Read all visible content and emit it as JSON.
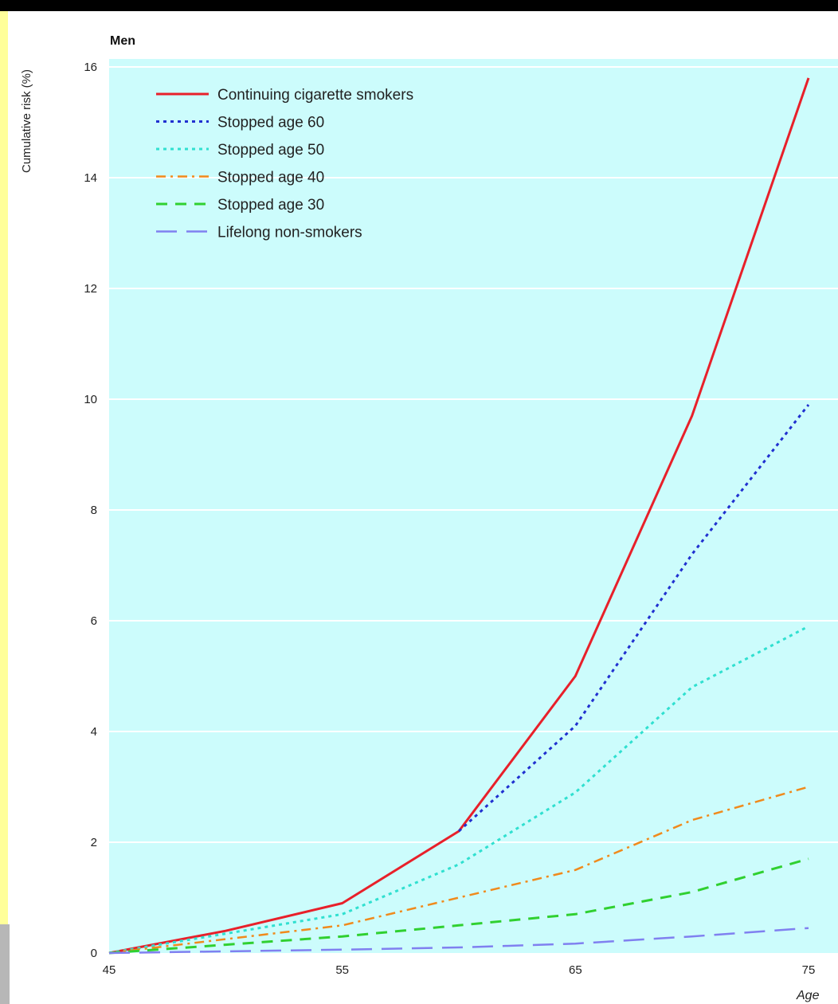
{
  "chart_data": {
    "type": "line",
    "title": "Men",
    "xlabel": "Age",
    "ylabel": "Cumulative risk (%)",
    "xlim": [
      45,
      75
    ],
    "ylim": [
      0,
      16
    ],
    "x_ticks": [
      "45",
      "55",
      "65",
      "75"
    ],
    "y_ticks": [
      "0",
      "2",
      "4",
      "6",
      "8",
      "10",
      "12",
      "14",
      "16"
    ],
    "grid": true,
    "legend_position": "top-left",
    "plot_background": "#ccfcfc",
    "series": [
      {
        "name": "Continuing cigarette smokers",
        "color": "#e8202a",
        "style": "solid",
        "x": [
          45,
          50,
          55,
          60,
          65,
          70,
          75
        ],
        "y": [
          0,
          0.4,
          0.9,
          2.2,
          5.0,
          9.7,
          15.8
        ]
      },
      {
        "name": "Stopped age 60",
        "color": "#2030d0",
        "style": "dotted",
        "x": [
          60,
          65,
          70,
          75
        ],
        "y": [
          2.2,
          4.1,
          7.2,
          9.9
        ]
      },
      {
        "name": "Stopped age 50",
        "color": "#30e0d0",
        "style": "dotted",
        "x": [
          45,
          50,
          55,
          60,
          65,
          70,
          75
        ],
        "y": [
          0,
          0.35,
          0.7,
          1.6,
          2.9,
          4.8,
          5.9
        ]
      },
      {
        "name": "Stopped age 40",
        "color": "#f08a1c",
        "style": "dashdot",
        "x": [
          45,
          50,
          55,
          60,
          65,
          70,
          75
        ],
        "y": [
          0,
          0.25,
          0.5,
          1.0,
          1.5,
          2.4,
          3.0
        ]
      },
      {
        "name": "Stopped age 30",
        "color": "#30d030",
        "style": "dashed",
        "x": [
          45,
          50,
          55,
          60,
          65,
          70,
          75
        ],
        "y": [
          0,
          0.15,
          0.3,
          0.5,
          0.7,
          1.1,
          1.7
        ]
      },
      {
        "name": "Lifelong non-smokers",
        "color": "#8080f0",
        "style": "longdash",
        "x": [
          45,
          50,
          55,
          60,
          65,
          70,
          75
        ],
        "y": [
          0,
          0.03,
          0.06,
          0.1,
          0.17,
          0.3,
          0.45
        ]
      }
    ]
  }
}
